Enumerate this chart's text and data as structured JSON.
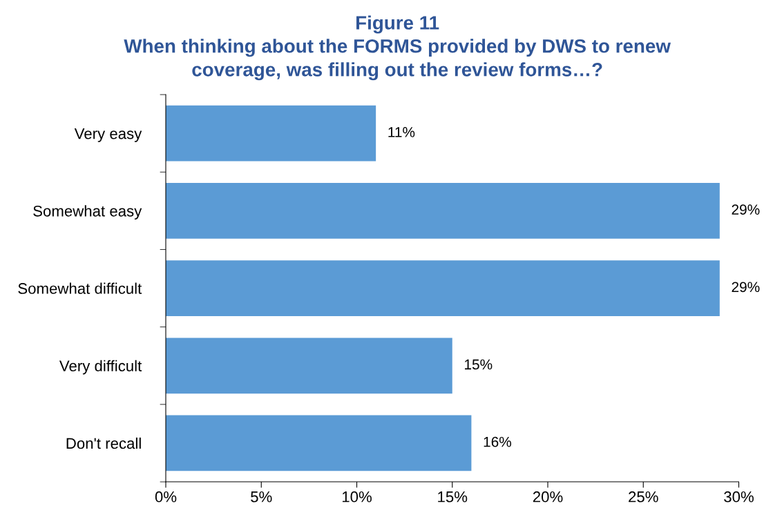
{
  "chart_data": {
    "type": "bar",
    "orientation": "horizontal",
    "title": "Figure 11",
    "subtitle": "When thinking about the FORMS provided by DWS to renew\ncoverage, was filling out the review forms…?",
    "categories": [
      "Very easy",
      "Somewhat easy",
      "Somewhat difficult",
      "Very difficult",
      "Don't recall"
    ],
    "values": [
      11,
      29,
      29,
      15,
      16
    ],
    "value_labels": [
      "11%",
      "29%",
      "29%",
      "15%",
      "16%"
    ],
    "color": "#5b9bd5",
    "xlim": [
      0,
      30
    ],
    "xticks": [
      {
        "value": 0,
        "label": "0%"
      },
      {
        "value": 5,
        "label": "5%"
      },
      {
        "value": 10,
        "label": "10%"
      },
      {
        "value": 15,
        "label": "15%"
      },
      {
        "value": 20,
        "label": "20%"
      },
      {
        "value": 25,
        "label": "25%"
      },
      {
        "value": 30,
        "label": "30%"
      }
    ],
    "grid": false,
    "legend": false
  }
}
